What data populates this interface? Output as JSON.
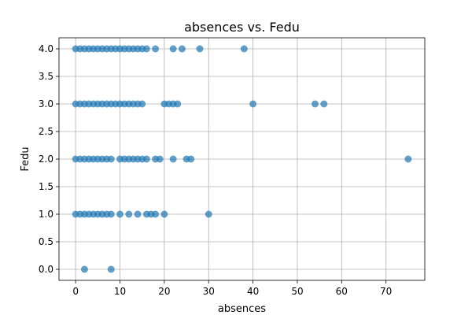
{
  "chart_data": {
    "type": "scatter",
    "title": "absences vs. Fedu",
    "xlabel": "absences",
    "ylabel": "Fedu",
    "xlim": [
      -3.75,
      78.75
    ],
    "ylim": [
      -0.2,
      4.2
    ],
    "xticks": [
      0,
      10,
      20,
      30,
      40,
      50,
      60,
      70
    ],
    "yticks": [
      0.0,
      0.5,
      1.0,
      1.5,
      2.0,
      2.5,
      3.0,
      3.5,
      4.0
    ],
    "xtick_labels": [
      "0",
      "10",
      "20",
      "30",
      "40",
      "50",
      "60",
      "70"
    ],
    "ytick_labels": [
      "0.0",
      "0.5",
      "1.0",
      "1.5",
      "2.0",
      "2.5",
      "3.0",
      "3.5",
      "4.0"
    ],
    "grid": true,
    "marker_color": "#1f77b4",
    "marker_alpha": 0.7,
    "series": [
      {
        "x": [
          0,
          1,
          2,
          3,
          4,
          5,
          6,
          7,
          8,
          9,
          10,
          11,
          12,
          13,
          14,
          15,
          16,
          18,
          22,
          24,
          28,
          38,
          0,
          1,
          2,
          3,
          4,
          5,
          6,
          7,
          8,
          9,
          10,
          11,
          12,
          13,
          14,
          15,
          20,
          21,
          22,
          23,
          40,
          54,
          56,
          0,
          1,
          2,
          3,
          4,
          5,
          6,
          7,
          8,
          10,
          11,
          12,
          13,
          14,
          15,
          16,
          18,
          19,
          22,
          25,
          26,
          75,
          0,
          1,
          2,
          3,
          4,
          5,
          6,
          7,
          8,
          10,
          12,
          14,
          16,
          17,
          18,
          20,
          30,
          2,
          8
        ],
        "y": [
          4,
          4,
          4,
          4,
          4,
          4,
          4,
          4,
          4,
          4,
          4,
          4,
          4,
          4,
          4,
          4,
          4,
          4,
          4,
          4,
          4,
          4,
          3,
          3,
          3,
          3,
          3,
          3,
          3,
          3,
          3,
          3,
          3,
          3,
          3,
          3,
          3,
          3,
          3,
          3,
          3,
          3,
          3,
          3,
          3,
          2,
          2,
          2,
          2,
          2,
          2,
          2,
          2,
          2,
          2,
          2,
          2,
          2,
          2,
          2,
          2,
          2,
          2,
          2,
          2,
          2,
          2,
          1,
          1,
          1,
          1,
          1,
          1,
          1,
          1,
          1,
          1,
          1,
          1,
          1,
          1,
          1,
          1,
          1,
          0,
          0
        ]
      }
    ]
  }
}
